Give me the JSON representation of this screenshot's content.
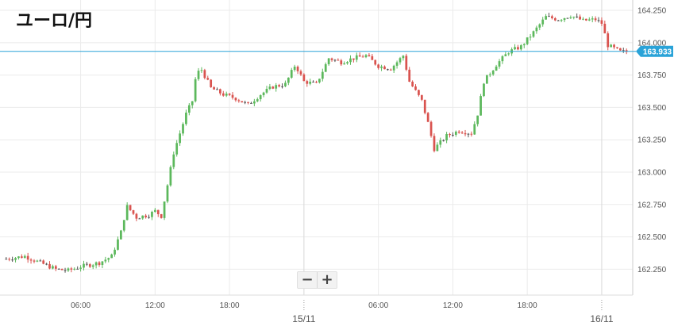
{
  "chart_data": {
    "type": "candlestick",
    "title": "ユーロ/円",
    "xlabel": "",
    "ylabel": "",
    "ylim": [
      162.05,
      164.33
    ],
    "grid": true,
    "y_ticks": [
      "164.250",
      "164.000",
      "163.750",
      "163.500",
      "163.250",
      "163.000",
      "162.750",
      "162.500",
      "162.250"
    ],
    "x_tick_hours": [
      6,
      12,
      18,
      24,
      30,
      36,
      42,
      48
    ],
    "x_ticks": [
      "06:00",
      "12:00",
      "18:00",
      "",
      "06:00",
      "12:00",
      "18:00",
      ""
    ],
    "date_labels": [
      {
        "hour": 24,
        "label": "15/11"
      },
      {
        "hour": 48,
        "label": "16/11"
      }
    ],
    "current_price": 163.933,
    "current_price_label": "163.933",
    "colors": {
      "up": "#5cb85c",
      "down": "#d9534f",
      "price_line": "#2aa3d8",
      "grid": "#ebebeb",
      "axis_text": "#555555",
      "doji": "#555555"
    },
    "path": [
      [
        0.0,
        162.33
      ],
      [
        1.5,
        162.35
      ],
      [
        2.5,
        162.31
      ],
      [
        4.0,
        162.25
      ],
      [
        5.0,
        162.24
      ],
      [
        6.0,
        162.27
      ],
      [
        7.5,
        162.3
      ],
      [
        8.5,
        162.35
      ],
      [
        9.3,
        162.55
      ],
      [
        9.7,
        162.74
      ],
      [
        10.5,
        162.65
      ],
      [
        11.5,
        162.67
      ],
      [
        12.0,
        162.7
      ],
      [
        12.5,
        162.66
      ],
      [
        13.0,
        162.9
      ],
      [
        13.5,
        163.15
      ],
      [
        14.0,
        163.3
      ],
      [
        14.5,
        163.45
      ],
      [
        15.0,
        163.55
      ],
      [
        15.3,
        163.75
      ],
      [
        15.7,
        163.8
      ],
      [
        16.5,
        163.65
      ],
      [
        17.5,
        163.6
      ],
      [
        18.5,
        163.57
      ],
      [
        19.5,
        163.52
      ],
      [
        20.5,
        163.6
      ],
      [
        21.5,
        163.66
      ],
      [
        22.5,
        163.68
      ],
      [
        23.3,
        163.83
      ],
      [
        24.0,
        163.7
      ],
      [
        25.0,
        163.68
      ],
      [
        26.0,
        163.88
      ],
      [
        27.0,
        163.85
      ],
      [
        28.0,
        163.88
      ],
      [
        29.0,
        163.9
      ],
      [
        30.0,
        163.82
      ],
      [
        31.0,
        163.8
      ],
      [
        32.0,
        163.9
      ],
      [
        32.5,
        163.7
      ],
      [
        33.5,
        163.55
      ],
      [
        34.0,
        163.38
      ],
      [
        34.5,
        163.18
      ],
      [
        35.5,
        163.28
      ],
      [
        36.5,
        163.32
      ],
      [
        37.5,
        163.3
      ],
      [
        38.0,
        163.45
      ],
      [
        38.5,
        163.7
      ],
      [
        39.5,
        163.83
      ],
      [
        40.5,
        163.93
      ],
      [
        41.5,
        163.97
      ],
      [
        42.5,
        164.08
      ],
      [
        43.5,
        164.2
      ],
      [
        44.5,
        164.18
      ],
      [
        45.5,
        164.21
      ],
      [
        46.5,
        164.17
      ],
      [
        47.5,
        164.18
      ],
      [
        48.0,
        164.15
      ],
      [
        48.5,
        163.98
      ],
      [
        49.5,
        163.93
      ],
      [
        50.0,
        163.93
      ]
    ],
    "candle_step_hours": 0.25,
    "x_range_hours": [
      -0.5,
      50.5
    ]
  },
  "zoom": {
    "minus": "−",
    "plus": "+"
  }
}
